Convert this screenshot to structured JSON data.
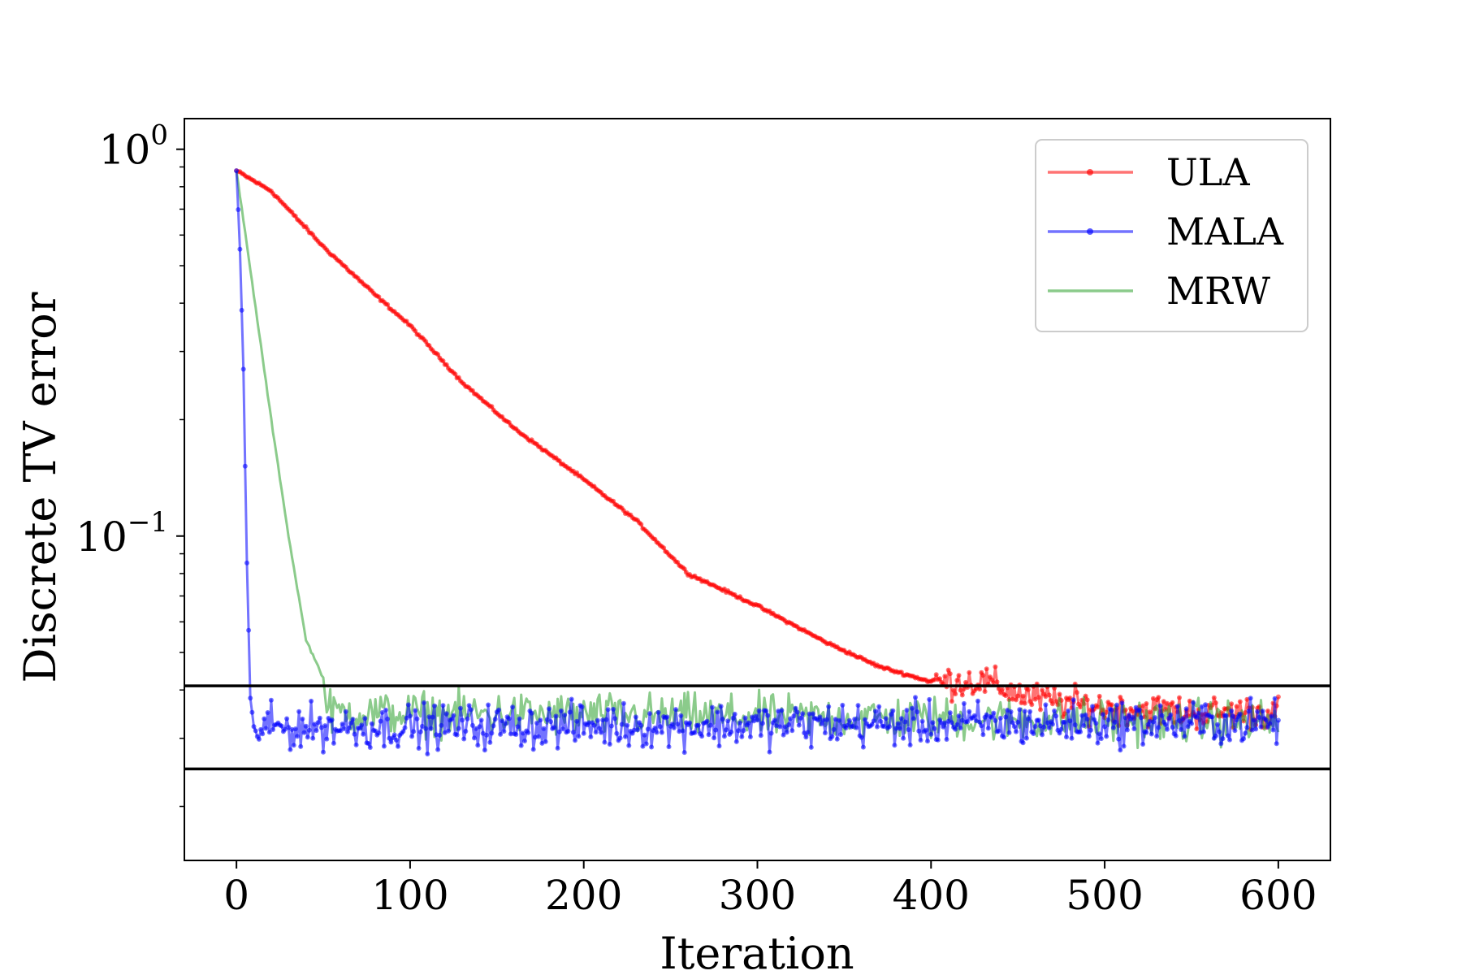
{
  "chart_data": {
    "type": "line",
    "title": "",
    "xlabel": "Iteration",
    "ylabel": "Discrete TV error",
    "y_scale": "log",
    "xlim": [
      -30,
      630
    ],
    "ylim": [
      0.0145,
      1.2
    ],
    "x_ticks": [
      0,
      100,
      200,
      300,
      400,
      500,
      600
    ],
    "x_tick_labels": [
      "0",
      "100",
      "200",
      "300",
      "400",
      "500",
      "600"
    ],
    "y_ticks": [
      1,
      0.1
    ],
    "y_tick_labels": [
      {
        "base": "10",
        "exp": "0"
      },
      {
        "base": "10",
        "exp": "−1"
      }
    ],
    "grid": false,
    "legend_position": "top-right",
    "reference_lines": [
      0.041,
      0.025
    ],
    "series": [
      {
        "name": "ULA",
        "color": "#ff0000",
        "markers": true,
        "points": [
          [
            0,
            0.88
          ],
          [
            20,
            0.78
          ],
          [
            50,
            0.56
          ],
          [
            80,
            0.42
          ],
          [
            100,
            0.35
          ],
          [
            130,
            0.25
          ],
          [
            160,
            0.19
          ],
          [
            200,
            0.14
          ],
          [
            230,
            0.11
          ],
          [
            260,
            0.08
          ],
          [
            300,
            0.066
          ],
          [
            340,
            0.053
          ],
          [
            370,
            0.046
          ],
          [
            400,
            0.042
          ],
          [
            430,
            0.042
          ],
          [
            460,
            0.038
          ],
          [
            500,
            0.036
          ],
          [
            550,
            0.035
          ],
          [
            600,
            0.035
          ]
        ],
        "noise": {
          "from": 400,
          "to": 600,
          "amplitude": 0.09
        }
      },
      {
        "name": "MALA",
        "color": "#0000ff",
        "markers": true,
        "points": [
          [
            0,
            0.88
          ],
          [
            2,
            0.55
          ],
          [
            4,
            0.27
          ],
          [
            6,
            0.085
          ],
          [
            8,
            0.038
          ],
          [
            10,
            0.032
          ],
          [
            600,
            0.033
          ]
        ],
        "noise": {
          "from": 10,
          "to": 600,
          "amplitude": 0.12
        }
      },
      {
        "name": "MRW",
        "color": "#2ca02c",
        "markers": false,
        "points": [
          [
            0,
            0.88
          ],
          [
            10,
            0.42
          ],
          [
            20,
            0.2
          ],
          [
            30,
            0.1
          ],
          [
            40,
            0.054
          ],
          [
            50,
            0.043
          ],
          [
            52,
            0.035
          ],
          [
            600,
            0.033
          ]
        ],
        "noise": {
          "from": 52,
          "to": 600,
          "amplitude": 0.12
        }
      }
    ]
  }
}
